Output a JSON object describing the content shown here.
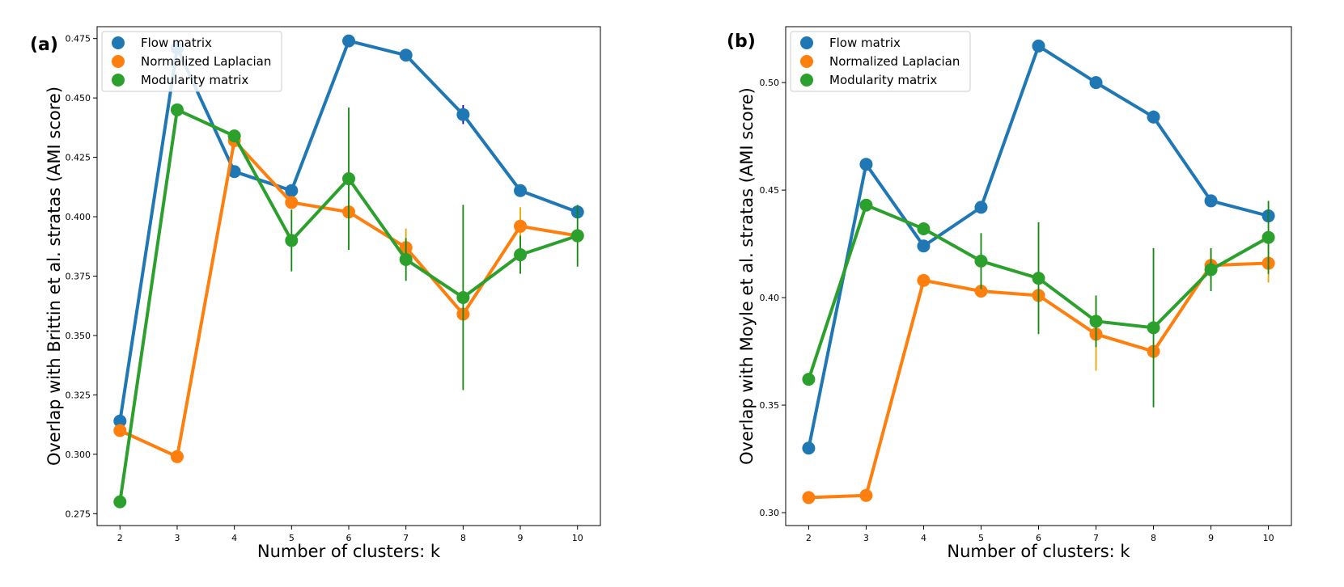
{
  "chart_data": [
    {
      "type": "line",
      "panel_label": "(a)",
      "xlabel": "Number of clusters: k",
      "ylabel": "Overlap with Brittin et al. stratas (AMI score)",
      "x": [
        2,
        3,
        4,
        5,
        6,
        7,
        8,
        9,
        10
      ],
      "xlim": [
        1.6,
        10.4
      ],
      "ylim": [
        0.27,
        0.48
      ],
      "yticks": [
        "0.275",
        "0.300",
        "0.325",
        "0.350",
        "0.375",
        "0.400",
        "0.425",
        "0.450",
        "0.475"
      ],
      "xticks": [
        "2",
        "3",
        "4",
        "5",
        "6",
        "7",
        "8",
        "9",
        "10"
      ],
      "legend_position": "top-left",
      "series": [
        {
          "name": "Flow matrix",
          "color": "#1f77b4",
          "values": [
            0.314,
            0.471,
            0.419,
            0.411,
            0.474,
            0.468,
            0.443,
            0.411,
            0.402
          ],
          "errors": [
            0,
            0,
            0,
            0,
            0,
            0,
            0.004,
            0.002,
            0
          ]
        },
        {
          "name": "Normalized Laplacian",
          "color": "#ff7f0e",
          "values": [
            0.31,
            0.299,
            0.432,
            0.406,
            0.402,
            0.387,
            0.359,
            0.396,
            0.392
          ],
          "errors": [
            0,
            0,
            0,
            0,
            0,
            0.008,
            0,
            0.008,
            0
          ]
        },
        {
          "name": "Modularity matrix",
          "color": "#2ca02c",
          "values": [
            0.28,
            0.445,
            0.434,
            0.39,
            0.416,
            0.382,
            0.366,
            0.384,
            0.392
          ],
          "errors": [
            0,
            0,
            0,
            0.013,
            0.03,
            0.009,
            0.039,
            0.008,
            0.013
          ]
        }
      ]
    },
    {
      "type": "line",
      "panel_label": "(b)",
      "xlabel": "Number of clusters: k",
      "ylabel": "Overlap with Moyle et al. stratas (AMI score)",
      "x": [
        2,
        3,
        4,
        5,
        6,
        7,
        8,
        9,
        10
      ],
      "xlim": [
        1.6,
        10.4
      ],
      "ylim": [
        0.294,
        0.526
      ],
      "yticks": [
        "0.30",
        "0.35",
        "0.40",
        "0.45",
        "0.50"
      ],
      "xticks": [
        "2",
        "3",
        "4",
        "5",
        "6",
        "7",
        "8",
        "9",
        "10"
      ],
      "legend_position": "top-left",
      "series": [
        {
          "name": "Flow matrix",
          "color": "#1f77b4",
          "values": [
            0.33,
            0.462,
            0.424,
            0.442,
            0.517,
            0.5,
            0.484,
            0.445,
            0.438
          ],
          "errors": [
            0,
            0,
            0,
            0,
            0,
            0,
            0.003,
            0,
            0
          ]
        },
        {
          "name": "Normalized Laplacian",
          "color": "#ff7f0e",
          "values": [
            0.307,
            0.308,
            0.408,
            0.403,
            0.401,
            0.383,
            0.375,
            0.415,
            0.416
          ],
          "errors": [
            0,
            0,
            0,
            0,
            0,
            0.017,
            0,
            0.008,
            0.009
          ]
        },
        {
          "name": "Modularity matrix",
          "color": "#2ca02c",
          "values": [
            0.362,
            0.443,
            0.432,
            0.417,
            0.409,
            0.389,
            0.386,
            0.413,
            0.428
          ],
          "errors": [
            0,
            0,
            0,
            0.013,
            0.026,
            0.012,
            0.037,
            0.01,
            0.017
          ]
        }
      ]
    }
  ]
}
